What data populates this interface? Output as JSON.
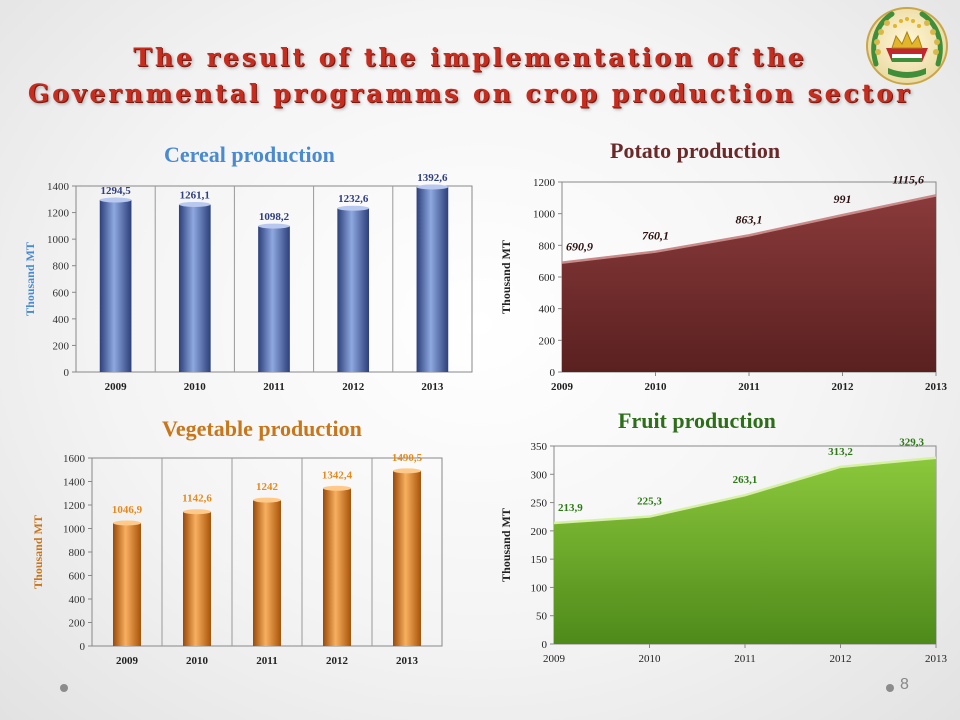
{
  "slide": {
    "title_line1": "The result of the implementation of the",
    "title_line2": "Governmental programms on crop production sector",
    "page_number": "8",
    "colors": {
      "title": "#c62d1f"
    }
  },
  "chart_data": [
    {
      "id": "cereal",
      "type": "bar",
      "title": "Cereal production",
      "ylabel": "Thousand MT",
      "xlabel": "",
      "categories": [
        "2009",
        "2010",
        "2011",
        "2012",
        "2013"
      ],
      "values": [
        1294.5,
        1261.1,
        1098.2,
        1232.6,
        1392.6
      ],
      "data_labels": [
        "1294,5",
        "1261,1",
        "1098,2",
        "1232,6",
        "1392,6"
      ],
      "ylim": [
        0,
        1400
      ],
      "yticks": [
        0,
        200,
        400,
        600,
        800,
        1000,
        1200,
        1400
      ],
      "grid": false,
      "colors": {
        "title": "#4a8ad0",
        "bar": "#4a68b8",
        "label": "#2f3f80",
        "axis_text": "#333333"
      }
    },
    {
      "id": "potato",
      "type": "area",
      "title": "Potato production",
      "ylabel": "Thousand MT",
      "xlabel": "",
      "categories": [
        "2009",
        "2010",
        "2011",
        "2012",
        "2013"
      ],
      "values": [
        690.9,
        760.1,
        863.1,
        991,
        1115.6
      ],
      "data_labels": [
        "690,9",
        "760,1",
        "863,1",
        "991",
        "1115,6"
      ],
      "ylim": [
        0,
        1200
      ],
      "yticks": [
        0,
        200,
        400,
        600,
        800,
        1000,
        1200
      ],
      "grid": false,
      "colors": {
        "title": "#6b2a2a",
        "area": "#6d2a2a",
        "label": "#2b1010",
        "axis_text": "#222222"
      }
    },
    {
      "id": "vegetable",
      "type": "bar",
      "title": "Vegetable production",
      "ylabel": "Thousand MT",
      "xlabel": "",
      "categories": [
        "2009",
        "2010",
        "2011",
        "2012",
        "2013"
      ],
      "values": [
        1046.9,
        1142.6,
        1242,
        1342.4,
        1490.5
      ],
      "data_labels": [
        "1046,9",
        "1142,6",
        "1242",
        "1342,4",
        "1490,5"
      ],
      "ylim": [
        0,
        1600
      ],
      "yticks": [
        0,
        200,
        400,
        600,
        800,
        1000,
        1200,
        1400,
        1600
      ],
      "grid": false,
      "colors": {
        "title": "#c8761a",
        "bar": "#e07a18",
        "label": "#e8891c",
        "axis_text": "#333333"
      }
    },
    {
      "id": "fruit",
      "type": "area",
      "title": "Fruit production",
      "ylabel": "Thousand MT",
      "xlabel": "",
      "categories": [
        "2009",
        "2010",
        "2011",
        "2012",
        "2013"
      ],
      "values": [
        213.9,
        225.3,
        263.1,
        313.2,
        329.3
      ],
      "data_labels": [
        "213,9",
        "225,3",
        "263,1",
        "313,2",
        "329,3"
      ],
      "ylim": [
        0,
        350
      ],
      "yticks": [
        0,
        50,
        100,
        150,
        200,
        250,
        300,
        350
      ],
      "grid": false,
      "colors": {
        "title": "#2e6e1a",
        "area": "#6fb02a",
        "label": "#2e7a16",
        "axis_text": "#222222"
      }
    }
  ]
}
